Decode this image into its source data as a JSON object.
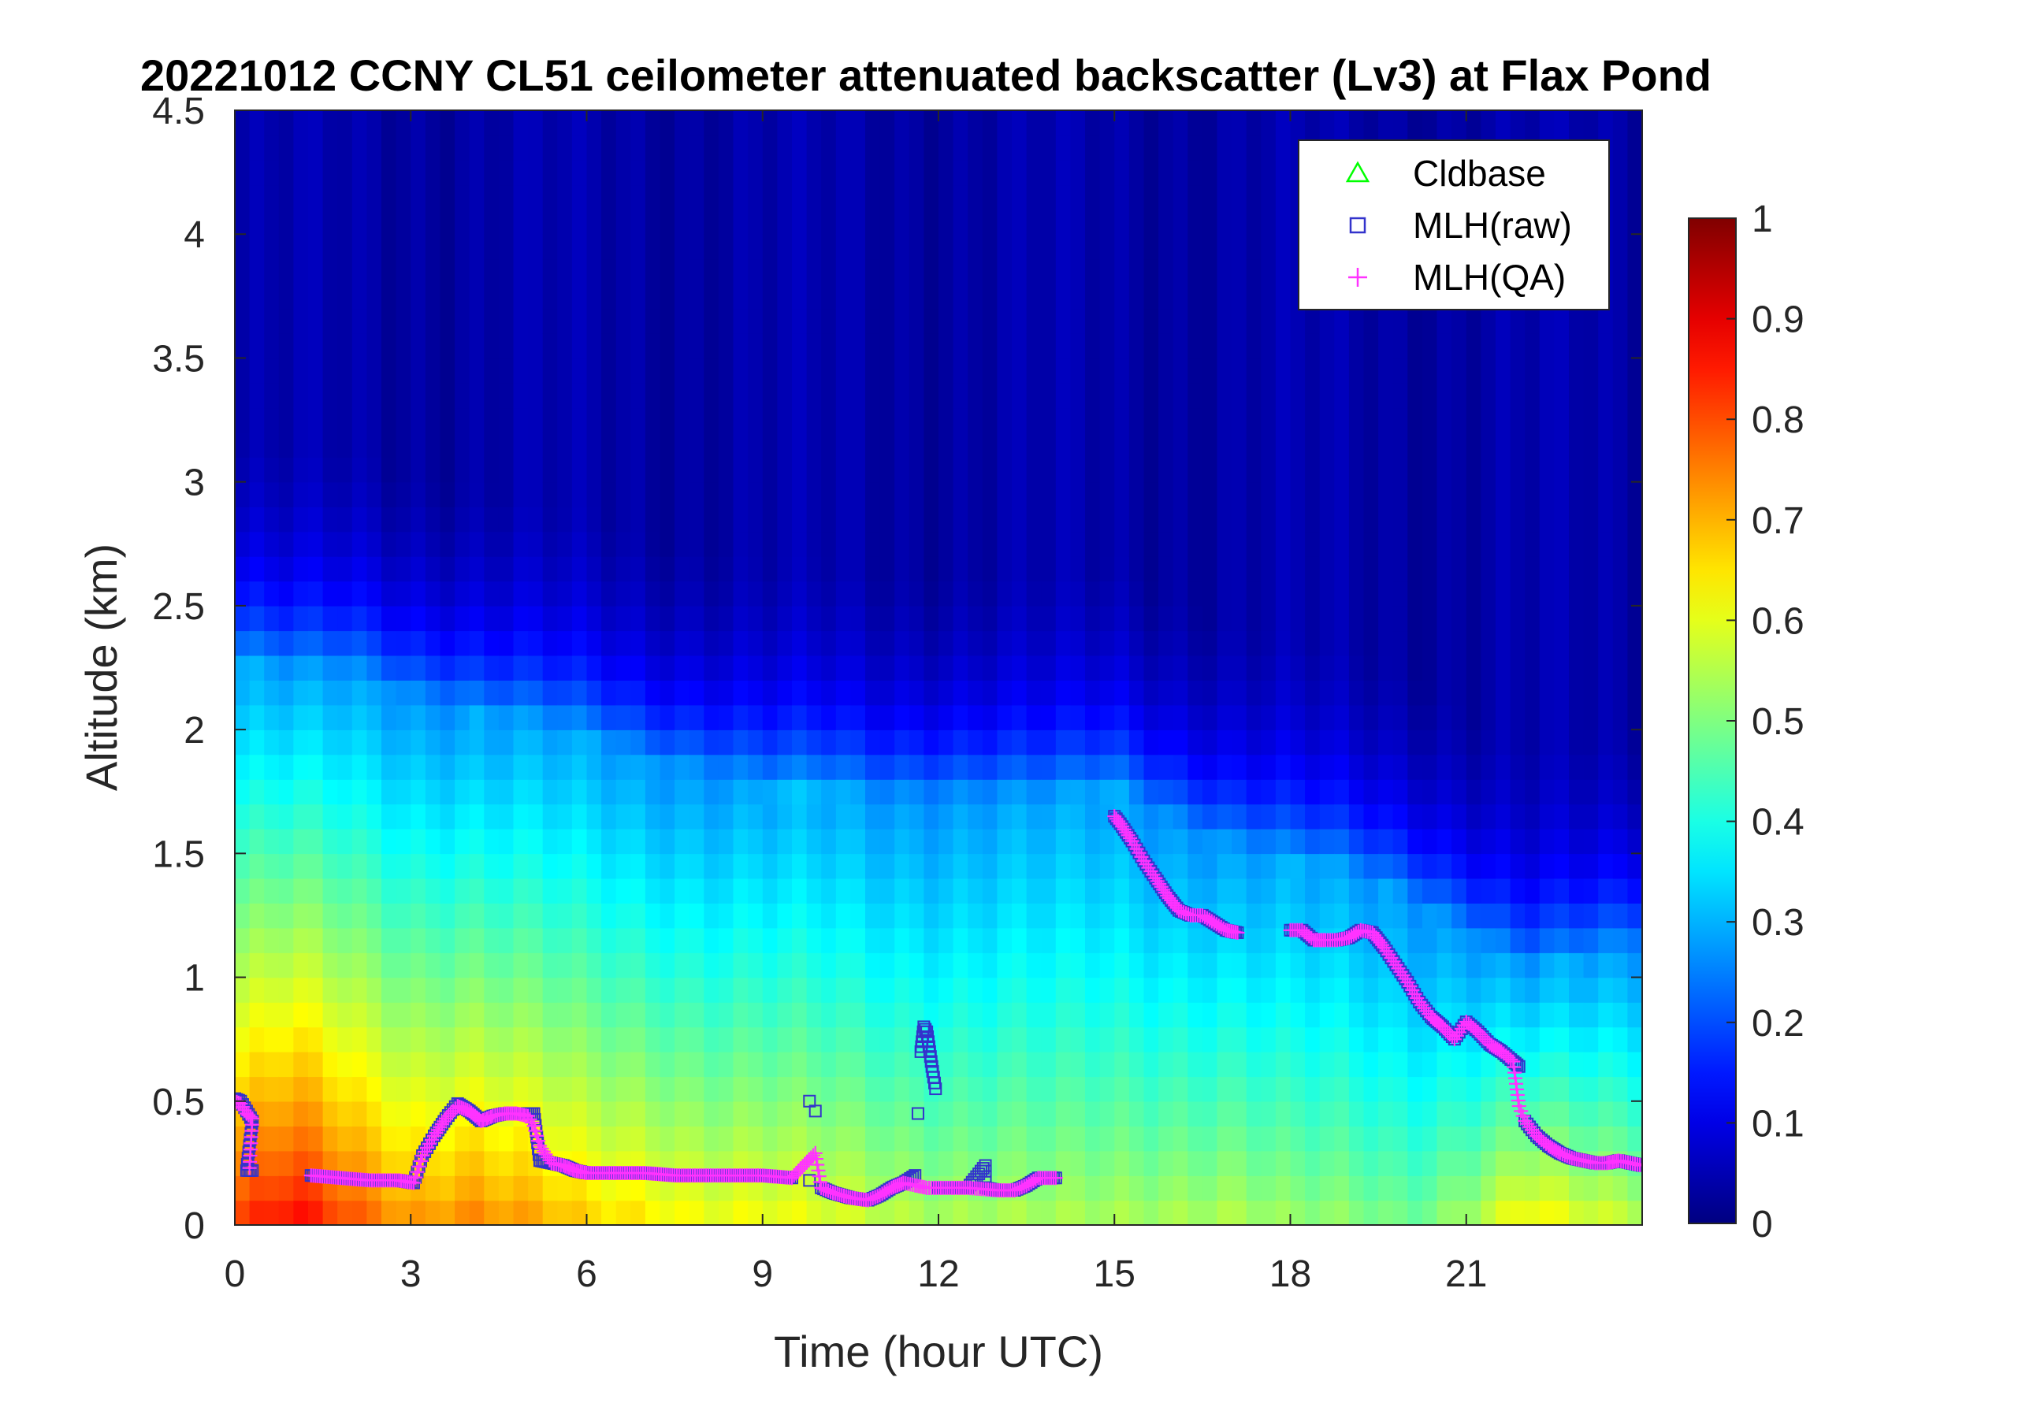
{
  "chart_data": {
    "type": "heatmap",
    "title": "20221012 CCNY CL51 ceilometer attenuated backscatter (Lv3) at Flax Pond",
    "xlabel": "Time (hour UTC)",
    "ylabel": "Altitude (km)",
    "xlim": [
      0,
      24
    ],
    "ylim": [
      0,
      4.5
    ],
    "xticks": [
      0,
      3,
      6,
      9,
      12,
      15,
      18,
      21
    ],
    "xtick_labels": [
      "0",
      "3",
      "6",
      "9",
      "12",
      "15",
      "18",
      "21"
    ],
    "yticks": [
      0,
      0.5,
      1,
      1.5,
      2,
      2.5,
      3,
      3.5,
      4,
      4.5
    ],
    "ytick_labels": [
      "0",
      "0.5",
      "1",
      "1.5",
      "2",
      "2.5",
      "3",
      "3.5",
      "4",
      "4.5"
    ],
    "colorbar": {
      "range": [
        0,
        1
      ],
      "ticks": [
        0,
        0.1,
        0.2,
        0.3,
        0.4,
        0.5,
        0.6,
        0.7,
        0.8,
        0.9,
        1
      ],
      "tick_labels": [
        "0",
        "0.1",
        "0.2",
        "0.3",
        "0.4",
        "0.5",
        "0.6",
        "0.7",
        "0.8",
        "0.9",
        "1"
      ],
      "colormap": "jet"
    },
    "legend": {
      "placement": "top-right",
      "entries": [
        {
          "name": "Cldbase",
          "marker": "triangle",
          "color": "#00ff00"
        },
        {
          "name": "MLH(raw)",
          "marker": "square",
          "color": "#3333cc"
        },
        {
          "name": "MLH(QA)",
          "marker": "plus",
          "color": "#ff33ff"
        }
      ]
    },
    "heatmap_profile": {
      "hours": [
        0,
        1,
        2,
        3,
        4,
        5,
        6,
        7,
        8,
        9,
        10,
        11,
        12,
        13,
        14,
        15,
        16,
        17,
        18,
        19,
        20,
        21,
        22,
        23,
        24
      ],
      "aerosol_layer_top_km": [
        2.25,
        2.2,
        2.2,
        2.1,
        2.05,
        2.0,
        1.95,
        1.85,
        1.8,
        1.75,
        1.75,
        1.7,
        1.7,
        1.7,
        1.7,
        1.75,
        1.6,
        1.5,
        1.45,
        1.4,
        1.3,
        1.15,
        1.0,
        1.05,
        1.1
      ],
      "surface_intensity": [
        0.82,
        0.88,
        0.8,
        0.74,
        0.76,
        0.72,
        0.67,
        0.66,
        0.63,
        0.62,
        0.6,
        0.58,
        0.56,
        0.55,
        0.54,
        0.55,
        0.56,
        0.56,
        0.52,
        0.52,
        0.5,
        0.55,
        0.64,
        0.6,
        0.58
      ]
    },
    "series": [
      {
        "name": "MLH(raw)",
        "x": [
          0.0,
          0.1,
          0.2,
          0.3,
          0.2,
          0.3,
          1.3,
          1.8,
          2.3,
          2.8,
          3.05,
          3.2,
          3.4,
          3.6,
          3.8,
          4.0,
          4.2,
          4.4,
          4.6,
          4.8,
          5.0,
          5.1,
          5.2,
          5.4,
          5.6,
          5.8,
          6.0,
          6.5,
          7.0,
          7.5,
          8.0,
          8.5,
          9.0,
          9.5,
          9.8,
          9.8,
          9.9,
          10.0,
          10.2,
          10.5,
          10.8,
          11.0,
          11.2,
          11.4,
          11.6,
          11.65,
          11.7,
          11.75,
          11.8,
          11.85,
          11.9,
          11.95,
          12.0,
          12.5,
          12.8,
          12.8,
          13.0,
          13.3,
          13.5,
          13.7,
          14.0,
          15.0,
          15.1,
          15.3,
          15.5,
          15.7,
          15.9,
          16.1,
          16.3,
          16.5,
          16.7,
          16.9,
          17.1,
          18.0,
          18.2,
          18.4,
          18.6,
          18.8,
          19.0,
          19.2,
          19.4,
          19.6,
          19.8,
          20.0,
          20.2,
          20.4,
          20.6,
          20.8,
          21.0,
          21.2,
          21.4,
          21.6,
          21.8,
          21.9,
          22.0,
          22.2,
          22.4,
          22.6,
          22.8,
          23.0,
          23.2,
          23.4,
          23.6,
          23.8,
          24.0
        ],
        "y": [
          0.51,
          0.5,
          0.46,
          0.42,
          0.22,
          0.22,
          0.2,
          0.19,
          0.18,
          0.18,
          0.17,
          0.28,
          0.36,
          0.43,
          0.49,
          0.46,
          0.42,
          0.44,
          0.45,
          0.45,
          0.45,
          0.45,
          0.26,
          0.25,
          0.24,
          0.22,
          0.21,
          0.21,
          0.21,
          0.2,
          0.2,
          0.2,
          0.2,
          0.19,
          0.5,
          0.18,
          0.46,
          0.15,
          0.13,
          0.11,
          0.1,
          0.12,
          0.15,
          0.17,
          0.2,
          0.45,
          0.7,
          0.8,
          0.78,
          0.7,
          0.62,
          0.55,
          0.15,
          0.15,
          0.24,
          0.15,
          0.14,
          0.14,
          0.16,
          0.19,
          0.19,
          1.65,
          1.62,
          1.55,
          1.47,
          1.4,
          1.33,
          1.27,
          1.25,
          1.25,
          1.22,
          1.19,
          1.18,
          1.19,
          1.19,
          1.15,
          1.15,
          1.15,
          1.16,
          1.19,
          1.18,
          1.12,
          1.05,
          0.98,
          0.9,
          0.84,
          0.8,
          0.75,
          0.82,
          0.78,
          0.73,
          0.7,
          0.66,
          0.64,
          0.42,
          0.36,
          0.32,
          0.29,
          0.27,
          0.26,
          0.25,
          0.25,
          0.26,
          0.25,
          0.24
        ]
      },
      {
        "name": "MLH(QA)",
        "x": [
          0.0,
          0.1,
          0.2,
          0.3,
          0.25,
          1.3,
          1.8,
          2.3,
          2.8,
          3.05,
          3.2,
          3.4,
          3.6,
          3.8,
          4.0,
          4.2,
          4.4,
          4.6,
          4.8,
          5.0,
          5.1,
          5.15,
          5.2,
          5.4,
          5.6,
          5.8,
          6.0,
          6.5,
          7.0,
          7.5,
          8.0,
          8.5,
          9.0,
          9.5,
          9.9,
          10.0,
          10.2,
          10.5,
          10.8,
          11.0,
          11.2,
          11.4,
          11.6,
          11.8,
          12.0,
          12.5,
          13.0,
          13.3,
          13.5,
          13.7,
          14.0,
          15.0,
          15.1,
          15.3,
          15.5,
          15.7,
          15.9,
          16.1,
          16.3,
          16.5,
          16.7,
          16.9,
          17.1,
          18.0,
          18.2,
          18.4,
          18.6,
          18.8,
          19.0,
          19.2,
          19.4,
          19.6,
          19.8,
          20.0,
          20.2,
          20.4,
          20.6,
          20.8,
          21.0,
          21.2,
          21.4,
          21.6,
          21.8,
          21.9,
          22.0,
          22.2,
          22.4,
          22.6,
          22.8,
          23.0,
          23.2,
          23.4,
          23.6,
          23.8,
          24.0
        ],
        "y": [
          0.5,
          0.49,
          0.45,
          0.43,
          0.23,
          0.2,
          0.19,
          0.18,
          0.18,
          0.17,
          0.28,
          0.36,
          0.43,
          0.48,
          0.46,
          0.42,
          0.44,
          0.45,
          0.45,
          0.44,
          0.4,
          0.36,
          0.32,
          0.25,
          0.24,
          0.22,
          0.21,
          0.21,
          0.21,
          0.2,
          0.2,
          0.2,
          0.2,
          0.19,
          0.29,
          0.15,
          0.13,
          0.11,
          0.1,
          0.12,
          0.15,
          0.17,
          0.16,
          0.15,
          0.15,
          0.15,
          0.14,
          0.14,
          0.16,
          0.19,
          0.19,
          1.65,
          1.62,
          1.55,
          1.47,
          1.4,
          1.33,
          1.27,
          1.25,
          1.25,
          1.22,
          1.19,
          1.18,
          1.19,
          1.19,
          1.15,
          1.15,
          1.15,
          1.16,
          1.19,
          1.18,
          1.12,
          1.05,
          0.98,
          0.9,
          0.84,
          0.8,
          0.75,
          0.82,
          0.78,
          0.73,
          0.7,
          0.66,
          0.48,
          0.42,
          0.36,
          0.32,
          0.29,
          0.27,
          0.26,
          0.25,
          0.25,
          0.26,
          0.25,
          0.24
        ]
      },
      {
        "name": "Cldbase",
        "x": [],
        "y": []
      }
    ]
  }
}
